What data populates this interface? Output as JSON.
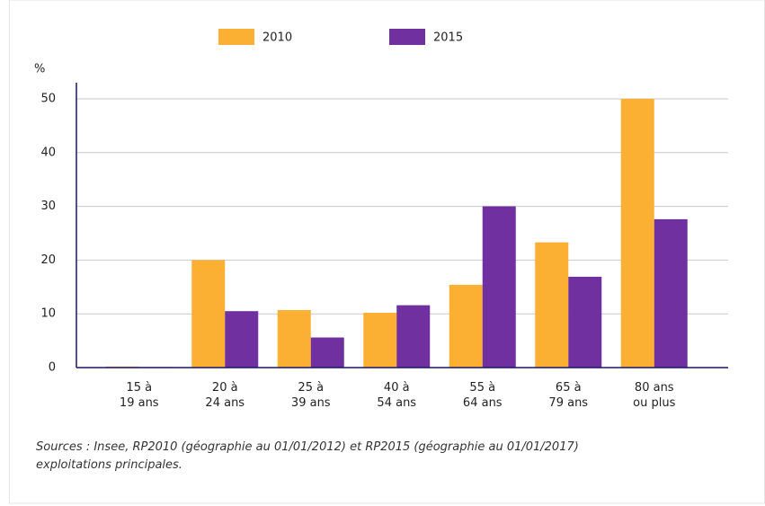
{
  "chart_data": {
    "type": "bar",
    "y_label": "%",
    "categories": [
      "15 à\n19 ans",
      "20 à\n24 ans",
      "25 à\n39 ans",
      "40 à\n54 ans",
      "55 à\n64 ans",
      "65 à\n79 ans",
      "80 ans\nou plus"
    ],
    "series": [
      {
        "name": "2010",
        "color": "#fbb034",
        "values": [
          0.2,
          20,
          10.7,
          10.2,
          15.4,
          23.3,
          50
        ]
      },
      {
        "name": "2015",
        "color": "#7030a0",
        "values": [
          0.1,
          10.5,
          5.6,
          11.6,
          30,
          16.9,
          27.6
        ]
      }
    ],
    "ylim": [
      0,
      53
    ],
    "yticks": [
      0,
      10,
      20,
      30,
      40,
      50
    ],
    "grid": true,
    "source": [
      "Sources : Insee, RP2010 (géographie au 01/01/2012) et RP2015 (géographie au 01/01/2017)",
      "exploitations principales."
    ]
  }
}
